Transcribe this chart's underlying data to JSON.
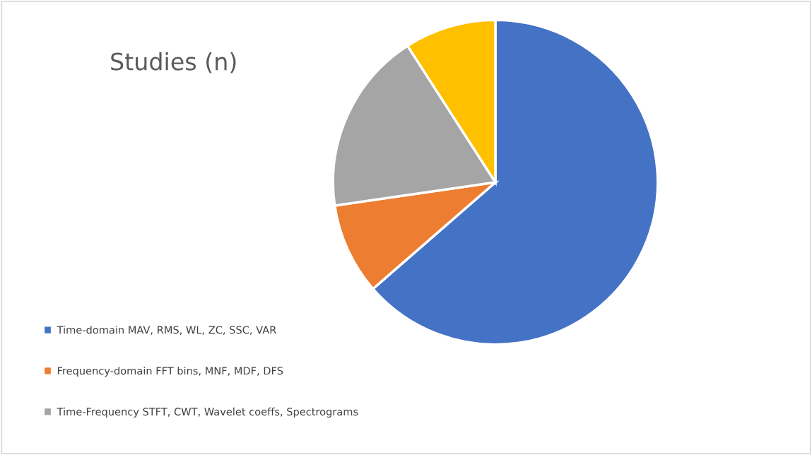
{
  "chart_data": {
    "type": "pie",
    "title": "Studies (n)",
    "categories": [
      "Time-domain MAV, RMS, WL, ZC, SSC, VAR",
      "Frequency-domain FFT bins, MNF, MDF, DFS",
      "Time-Frequency STFT, CWT, Wavelet coeffs, Spectrograms",
      null
    ],
    "values": [
      63.6,
      9.1,
      18.2,
      9.1
    ],
    "colors": [
      "#4472c4",
      "#ed7d31",
      "#a5a5a5",
      "#ffc000"
    ],
    "legend": "bottom left"
  }
}
